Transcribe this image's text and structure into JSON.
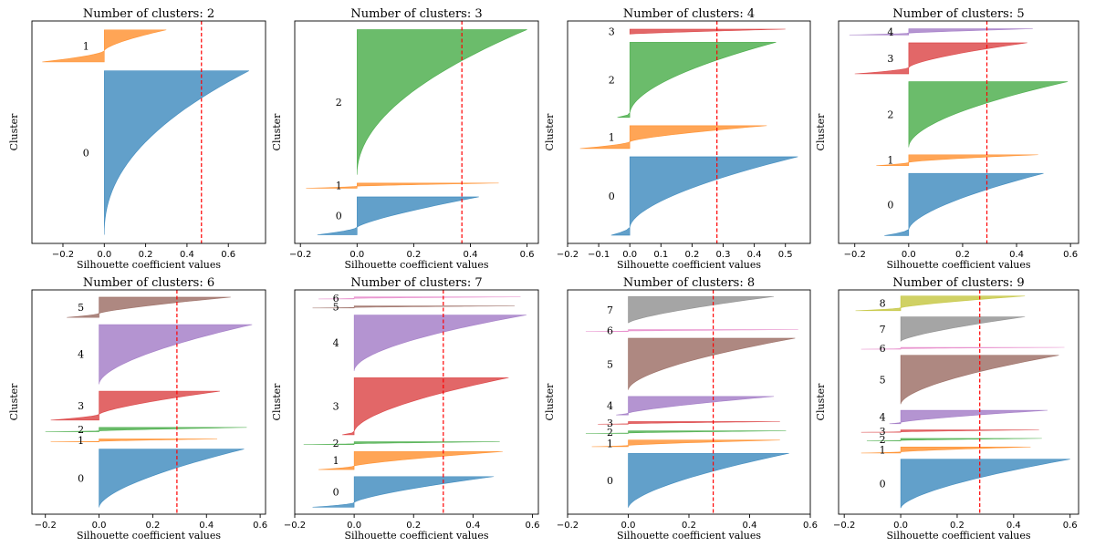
{
  "figure": {
    "xlabel": "Silhouette coefficient values",
    "ylabel": "Cluster"
  },
  "chart_data": [
    {
      "type": "area",
      "title": "Number of clusters: 2",
      "xlabel": "Silhouette coefficient values",
      "ylabel": "Cluster",
      "xlim": [
        -0.35,
        0.78
      ],
      "xticks": [
        -0.2,
        0.0,
        0.2,
        0.4,
        0.6
      ],
      "tick_labels": [
        "−0.2",
        "0.0",
        "0.2",
        "0.4",
        "0.6"
      ],
      "average": 0.47,
      "clusters": [
        {
          "label": "0",
          "size": 184,
          "min": 0.0,
          "max": 0.7,
          "neg": 0.0,
          "shape": 2.2
        },
        {
          "label": "1",
          "size": 36,
          "min": -0.3,
          "max": 0.3,
          "neg": 0.35,
          "shape": 1.5
        }
      ]
    },
    {
      "type": "area",
      "title": "Number of clusters: 3",
      "xlabel": "Silhouette coefficient values",
      "ylabel": "Cluster",
      "xlim": [
        -0.22,
        0.64
      ],
      "xticks": [
        -0.2,
        0.0,
        0.2,
        0.4,
        0.6
      ],
      "tick_labels": [
        "−0.2",
        "0.0",
        "0.2",
        "0.4",
        "0.6"
      ],
      "average": 0.37,
      "clusters": [
        {
          "label": "0",
          "size": 44,
          "min": -0.14,
          "max": 0.43,
          "neg": 0.2,
          "shape": 1.3
        },
        {
          "label": "1",
          "size": 6,
          "min": -0.18,
          "max": 0.5,
          "neg": 0.4,
          "shape": 1.2
        },
        {
          "label": "2",
          "size": 168,
          "min": 0.0,
          "max": 0.6,
          "neg": 0.0,
          "shape": 2.0
        }
      ]
    },
    {
      "type": "area",
      "title": "Number of clusters: 4",
      "xlabel": "Silhouette coefficient values",
      "ylabel": "Cluster",
      "xlim": [
        -0.2,
        0.58
      ],
      "xticks": [
        -0.2,
        -0.1,
        0.0,
        0.1,
        0.2,
        0.3,
        0.4,
        0.5
      ],
      "tick_labels": [
        "−0.2",
        "−0.1",
        "0.0",
        "0.1",
        "0.2",
        "0.3",
        "0.4",
        "0.5"
      ],
      "average": 0.28,
      "clusters": [
        {
          "label": "0",
          "size": 96,
          "min": -0.06,
          "max": 0.54,
          "neg": 0.1,
          "shape": 1.7
        },
        {
          "label": "1",
          "size": 28,
          "min": -0.16,
          "max": 0.44,
          "neg": 0.3,
          "shape": 1.4
        },
        {
          "label": "2",
          "size": 92,
          "min": -0.04,
          "max": 0.47,
          "neg": 0.05,
          "shape": 1.8
        },
        {
          "label": "3",
          "size": 6,
          "min": 0.0,
          "max": 0.5,
          "neg": 0.0,
          "shape": 1.2
        }
      ]
    },
    {
      "type": "area",
      "title": "Number of clusters: 5",
      "xlabel": "Silhouette coefficient values",
      "ylabel": "Cluster",
      "xlim": [
        -0.26,
        0.63
      ],
      "xticks": [
        -0.2,
        0.0,
        0.2,
        0.4,
        0.6
      ],
      "tick_labels": [
        "−0.2",
        "0.0",
        "0.2",
        "0.4",
        "0.6"
      ],
      "average": 0.29,
      "clusters": [
        {
          "label": "0",
          "size": 80,
          "min": -0.09,
          "max": 0.5,
          "neg": 0.1,
          "shape": 1.6
        },
        {
          "label": "1",
          "size": 14,
          "min": -0.12,
          "max": 0.48,
          "neg": 0.3,
          "shape": 1.4
        },
        {
          "label": "2",
          "size": 84,
          "min": 0.0,
          "max": 0.59,
          "neg": 0.0,
          "shape": 1.8
        },
        {
          "label": "3",
          "size": 40,
          "min": -0.2,
          "max": 0.44,
          "neg": 0.2,
          "shape": 1.5
        },
        {
          "label": "4",
          "size": 8,
          "min": -0.22,
          "max": 0.46,
          "neg": 0.3,
          "shape": 1.2
        }
      ]
    },
    {
      "type": "area",
      "title": "Number of clusters: 6",
      "xlabel": "Silhouette coefficient values",
      "ylabel": "Cluster",
      "xlim": [
        -0.25,
        0.62
      ],
      "xticks": [
        -0.2,
        0.0,
        0.2,
        0.4,
        0.6
      ],
      "tick_labels": [
        "−0.2",
        "0.0",
        "0.2",
        "0.4",
        "0.6"
      ],
      "average": 0.29,
      "clusters": [
        {
          "label": "0",
          "size": 80,
          "min": 0.0,
          "max": 0.54,
          "neg": 0.0,
          "shape": 1.6
        },
        {
          "label": "1",
          "size": 4,
          "min": -0.18,
          "max": 0.44,
          "neg": 0.2,
          "shape": 1.2
        },
        {
          "label": "2",
          "size": 6,
          "min": -0.2,
          "max": 0.55,
          "neg": 0.2,
          "shape": 1.2
        },
        {
          "label": "3",
          "size": 40,
          "min": -0.18,
          "max": 0.45,
          "neg": 0.2,
          "shape": 1.4
        },
        {
          "label": "4",
          "size": 82,
          "min": 0.0,
          "max": 0.57,
          "neg": 0.0,
          "shape": 1.7
        },
        {
          "label": "5",
          "size": 28,
          "min": -0.12,
          "max": 0.49,
          "neg": 0.2,
          "shape": 1.3
        }
      ]
    },
    {
      "type": "area",
      "title": "Number of clusters: 7",
      "xlabel": "Silhouette coefficient values",
      "ylabel": "Cluster",
      "xlim": [
        -0.2,
        0.62
      ],
      "xticks": [
        -0.2,
        0.0,
        0.2,
        0.4,
        0.6
      ],
      "tick_labels": [
        "−0.2",
        "0.0",
        "0.2",
        "0.4",
        "0.6"
      ],
      "average": 0.3,
      "clusters": [
        {
          "label": "0",
          "size": 44,
          "min": -0.14,
          "max": 0.47,
          "neg": 0.15,
          "shape": 1.4
        },
        {
          "label": "1",
          "size": 26,
          "min": -0.12,
          "max": 0.5,
          "neg": 0.2,
          "shape": 1.3
        },
        {
          "label": "2",
          "size": 4,
          "min": -0.17,
          "max": 0.49,
          "neg": 0.3,
          "shape": 1.2
        },
        {
          "label": "3",
          "size": 82,
          "min": -0.04,
          "max": 0.52,
          "neg": 0.05,
          "shape": 1.7
        },
        {
          "label": "4",
          "size": 80,
          "min": 0.0,
          "max": 0.58,
          "neg": 0.0,
          "shape": 1.8
        },
        {
          "label": "5",
          "size": 3,
          "min": -0.14,
          "max": 0.54,
          "neg": 0.3,
          "shape": 1.2
        },
        {
          "label": "6",
          "size": 3,
          "min": -0.12,
          "max": 0.56,
          "neg": 0.3,
          "shape": 1.2
        }
      ]
    },
    {
      "type": "area",
      "title": "Number of clusters: 8",
      "xlabel": "Silhouette coefficient values",
      "ylabel": "Cluster",
      "xlim": [
        -0.2,
        0.6
      ],
      "xticks": [
        -0.2,
        0.0,
        0.2,
        0.4,
        0.6
      ],
      "tick_labels": [
        "−0.2",
        "0.0",
        "0.2",
        "0.4",
        "0.6"
      ],
      "average": 0.28,
      "clusters": [
        {
          "label": "0",
          "size": 82,
          "min": 0.0,
          "max": 0.53,
          "neg": 0.0,
          "shape": 1.6
        },
        {
          "label": "1",
          "size": 10,
          "min": -0.12,
          "max": 0.5,
          "neg": 0.2,
          "shape": 1.3
        },
        {
          "label": "2",
          "size": 4,
          "min": -0.14,
          "max": 0.52,
          "neg": 0.2,
          "shape": 1.2
        },
        {
          "label": "3",
          "size": 4,
          "min": -0.1,
          "max": 0.5,
          "neg": 0.2,
          "shape": 1.2
        },
        {
          "label": "4",
          "size": 28,
          "min": -0.04,
          "max": 0.48,
          "neg": 0.1,
          "shape": 1.3
        },
        {
          "label": "5",
          "size": 78,
          "min": 0.0,
          "max": 0.55,
          "neg": 0.0,
          "shape": 1.7
        },
        {
          "label": "6",
          "size": 3,
          "min": -0.14,
          "max": 0.56,
          "neg": 0.3,
          "shape": 1.2
        },
        {
          "label": "7",
          "size": 40,
          "min": 0.0,
          "max": 0.48,
          "neg": 0.0,
          "shape": 1.4
        }
      ]
    },
    {
      "type": "area",
      "title": "Number of clusters: 9",
      "xlabel": "Silhouette coefficient values",
      "ylabel": "Cluster",
      "xlim": [
        -0.22,
        0.63
      ],
      "xticks": [
        -0.2,
        0.0,
        0.2,
        0.4,
        0.6
      ],
      "tick_labels": [
        "−0.2",
        "0.0",
        "0.2",
        "0.4",
        "0.6"
      ],
      "average": 0.28,
      "clusters": [
        {
          "label": "0",
          "size": 80,
          "min": 0.0,
          "max": 0.6,
          "neg": 0.0,
          "shape": 1.6
        },
        {
          "label": "1",
          "size": 10,
          "min": -0.14,
          "max": 0.46,
          "neg": 0.2,
          "shape": 1.3
        },
        {
          "label": "2",
          "size": 4,
          "min": -0.12,
          "max": 0.5,
          "neg": 0.2,
          "shape": 1.2
        },
        {
          "label": "3",
          "size": 4,
          "min": -0.14,
          "max": 0.49,
          "neg": 0.2,
          "shape": 1.2
        },
        {
          "label": "4",
          "size": 22,
          "min": -0.04,
          "max": 0.52,
          "neg": 0.1,
          "shape": 1.3
        },
        {
          "label": "5",
          "size": 80,
          "min": 0.0,
          "max": 0.56,
          "neg": 0.0,
          "shape": 1.7
        },
        {
          "label": "6",
          "size": 3,
          "min": -0.14,
          "max": 0.58,
          "neg": 0.3,
          "shape": 1.2
        },
        {
          "label": "7",
          "size": 40,
          "min": 0.0,
          "max": 0.44,
          "neg": 0.0,
          "shape": 1.4
        },
        {
          "label": "8",
          "size": 24,
          "min": -0.16,
          "max": 0.44,
          "neg": 0.2,
          "shape": 1.3
        }
      ]
    }
  ]
}
